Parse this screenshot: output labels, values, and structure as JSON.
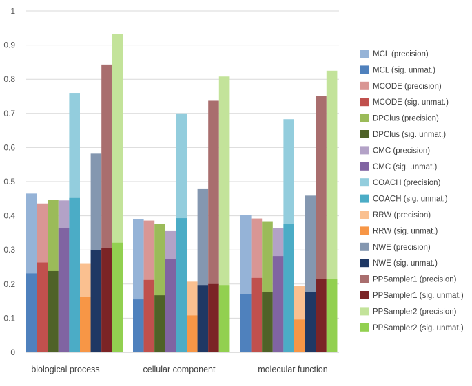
{
  "chart_data": {
    "type": "bar",
    "title": "",
    "xlabel": "",
    "ylabel": "",
    "ylim": [
      0,
      1
    ],
    "yticks": [
      "0",
      "0.1",
      "0.2",
      "0.3",
      "0.4",
      "0.5",
      "0.6",
      "0.7",
      "0.8",
      "0.9",
      "1"
    ],
    "grid": true,
    "legend_position": "right",
    "categories": [
      "biological process",
      "cellular component",
      "molecular function"
    ],
    "methods": [
      {
        "name": "MCL",
        "precision_label": "MCL (precision)",
        "sig_label": "MCL (sig. unmat.)",
        "precision_color": "#95b3d7",
        "sig_color": "#4f81bd",
        "precision": [
          0.465,
          0.39,
          0.403
        ],
        "sig_unmat": [
          0.231,
          0.155,
          0.17
        ]
      },
      {
        "name": "MCODE",
        "precision_label": "MCODE (precision)",
        "sig_label": "MCODE (sig. unmat.)",
        "precision_color": "#d99694",
        "sig_color": "#c0504d",
        "precision": [
          0.436,
          0.386,
          0.392
        ],
        "sig_unmat": [
          0.263,
          0.212,
          0.218
        ]
      },
      {
        "name": "DPClus",
        "precision_label": "DPClus (precision)",
        "sig_label": "DPClus (sig. unmat.)",
        "precision_color": "#9bbb59",
        "sig_color": "#4f6228",
        "precision": [
          0.446,
          0.377,
          0.384
        ],
        "sig_unmat": [
          0.238,
          0.167,
          0.176
        ]
      },
      {
        "name": "CMC",
        "precision_label": "CMC (precision)",
        "sig_label": "CMC (sig. unmat.)",
        "precision_color": "#b3a2c7",
        "sig_color": "#8064a2",
        "precision": [
          0.445,
          0.355,
          0.363
        ],
        "sig_unmat": [
          0.364,
          0.273,
          0.282
        ]
      },
      {
        "name": "COACH",
        "precision_label": "COACH (precision)",
        "sig_label": "COACH (sig. unmat.)",
        "precision_color": "#93cddd",
        "sig_color": "#4bacc6",
        "precision": [
          0.76,
          0.7,
          0.683
        ],
        "sig_unmat": [
          0.452,
          0.393,
          0.377
        ]
      },
      {
        "name": "RRW",
        "precision_label": "RRW (precision)",
        "sig_label": "RRW (sig. unmat.)",
        "precision_color": "#fac090",
        "sig_color": "#f79646",
        "precision": [
          0.261,
          0.207,
          0.195
        ],
        "sig_unmat": [
          0.162,
          0.108,
          0.096
        ]
      },
      {
        "name": "NWE",
        "precision_label": "NWE (precision)",
        "sig_label": "NWE (sig. unmat.)",
        "precision_color": "#8497b0",
        "sig_color": "#1f3864",
        "precision": [
          0.582,
          0.48,
          0.459
        ],
        "sig_unmat": [
          0.299,
          0.197,
          0.176
        ]
      },
      {
        "name": "PPSampler1",
        "precision_label": "PPSampler1 (precision)",
        "sig_label": "PPSampler1 (sig. unmat.)",
        "precision_color": "#a96e6e",
        "sig_color": "#7b2426",
        "precision": [
          0.843,
          0.737,
          0.75
        ],
        "sig_unmat": [
          0.306,
          0.2,
          0.215
        ]
      },
      {
        "name": "PPSampler2",
        "precision_label": "PPSampler2 (precision)",
        "sig_label": "PPSampler2 (sig. unmat.)",
        "precision_color": "#c3e39a",
        "sig_color": "#92d050",
        "precision": [
          0.932,
          0.808,
          0.825
        ],
        "sig_unmat": [
          0.321,
          0.197,
          0.215
        ]
      }
    ]
  }
}
